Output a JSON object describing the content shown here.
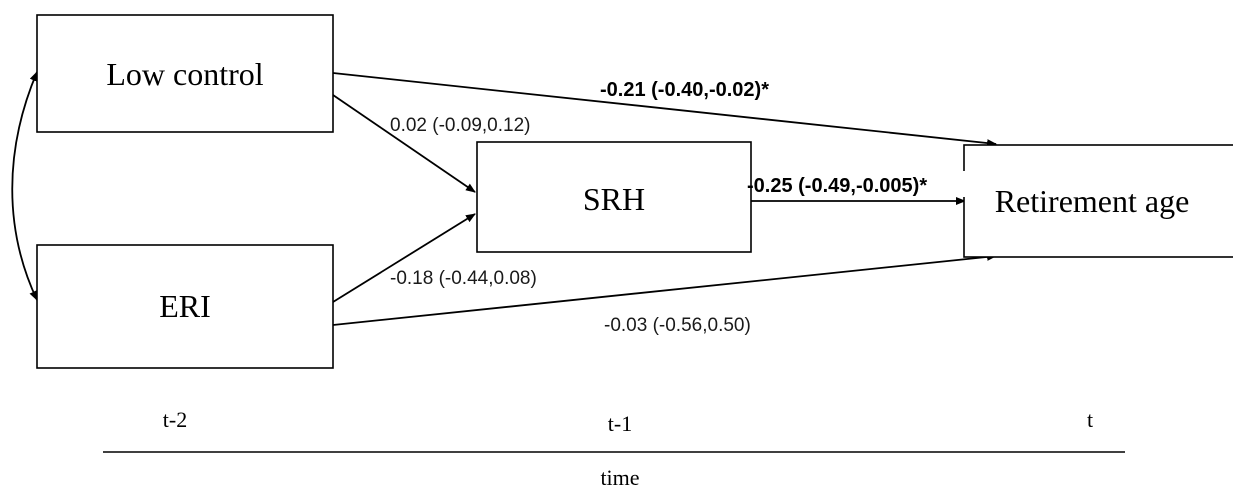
{
  "nodes": {
    "low_control": "Low control",
    "eri": "ERI",
    "srh": "SRH",
    "retirement_age": "Retirement age"
  },
  "paths": {
    "low_control_to_retirement": "-0.21 (-0.40,-0.02)*",
    "low_control_to_srh": "0.02 (-0.09,0.12)",
    "srh_to_retirement": "-0.25 (-0.49,-0.005)*",
    "eri_to_srh": "-0.18 (-0.44,0.08)",
    "eri_to_retirement": "-0.03 (-0.56,0.50)"
  },
  "timeline": {
    "t_minus_2": "t-2",
    "t_minus_1": "t-1",
    "t": "t",
    "axis_label": "time"
  }
}
